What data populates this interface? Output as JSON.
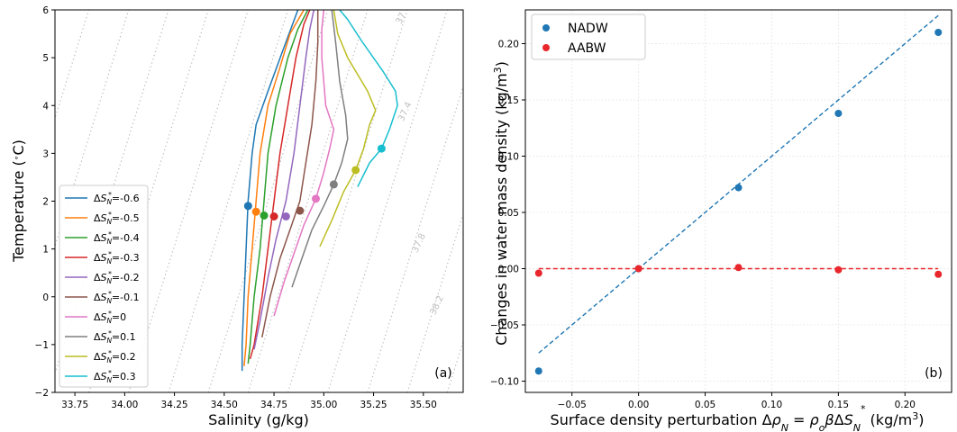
{
  "chart_data": [
    {
      "type": "line",
      "panel_label": "(a)",
      "xlabel": "Salinity (g/kg)",
      "ylabel": "Temperature (°C)",
      "xlim": [
        33.65,
        35.7
      ],
      "ylim": [
        -2,
        6
      ],
      "xticks": [
        {
          "v": 33.75,
          "label": "33.75"
        },
        {
          "v": 34.0,
          "label": "34.00"
        },
        {
          "v": 34.25,
          "label": "34.25"
        },
        {
          "v": 34.5,
          "label": "34.50"
        },
        {
          "v": 34.75,
          "label": "34.75"
        },
        {
          "v": 35.0,
          "label": "35.00"
        },
        {
          "v": 35.25,
          "label": "35.25"
        },
        {
          "v": 35.5,
          "label": "35.50"
        }
      ],
      "yticks": [
        {
          "v": -2,
          "label": "−2"
        },
        {
          "v": -1,
          "label": "−1"
        },
        {
          "v": 0,
          "label": "0"
        },
        {
          "v": 1,
          "label": "1"
        },
        {
          "v": 2,
          "label": "2"
        },
        {
          "v": 3,
          "label": "3"
        },
        {
          "v": 4,
          "label": "4"
        },
        {
          "v": 5,
          "label": "5"
        },
        {
          "v": 6,
          "label": "6"
        }
      ],
      "density_contours": {
        "style": "dotted gray",
        "lines": [
          {
            "S_at_Tmin": 33.22,
            "S_at_Tmax": 33.82
          },
          {
            "S_at_Tmin": 33.42,
            "S_at_Tmax": 34.02
          },
          {
            "S_at_Tmin": 33.62,
            "S_at_Tmax": 34.22
          },
          {
            "S_at_Tmin": 33.82,
            "S_at_Tmax": 34.42
          },
          {
            "S_at_Tmin": 34.02,
            "S_at_Tmax": 34.62
          },
          {
            "S_at_Tmin": 34.22,
            "S_at_Tmax": 34.82
          },
          {
            "S_at_Tmin": 34.42,
            "S_at_Tmax": 35.02
          },
          {
            "S_at_Tmin": 34.62,
            "S_at_Tmax": 35.22
          },
          {
            "S_at_Tmin": 34.82,
            "S_at_Tmax": 35.42
          },
          {
            "S_at_Tmin": 35.02,
            "S_at_Tmax": 35.62
          },
          {
            "S_at_Tmin": 35.22,
            "S_at_Tmax": 35.82
          },
          {
            "S_at_Tmin": 35.42,
            "S_at_Tmax": 36.02
          },
          {
            "S_at_Tmin": 35.62,
            "S_at_Tmax": 36.22
          }
        ],
        "labels": [
          {
            "text": "37",
            "S": 35.4,
            "T": 5.8
          },
          {
            "text": "37.4",
            "S": 35.42,
            "T": 3.85
          },
          {
            "text": "37.8",
            "S": 35.49,
            "T": 1.1
          },
          {
            "text": "38.2",
            "S": 35.58,
            "T": -0.2
          }
        ]
      },
      "legend_position": "lower-left",
      "series": [
        {
          "name": "ΔS*N=-0.6",
          "color": "#1f77b4",
          "points": [
            [
              34.59,
              -1.55
            ],
            [
              34.59,
              -1
            ],
            [
              34.6,
              0
            ],
            [
              34.61,
              1
            ],
            [
              34.62,
              2
            ],
            [
              34.64,
              3
            ],
            [
              34.66,
              3.6
            ],
            [
              34.72,
              4.3
            ],
            [
              34.79,
              5.1
            ],
            [
              34.87,
              6
            ]
          ],
          "marker": [
            34.62,
            1.9
          ]
        },
        {
          "name": "ΔS*N=-0.5",
          "color": "#ff7f0e",
          "points": [
            [
              34.6,
              -1.45
            ],
            [
              34.61,
              -1
            ],
            [
              34.62,
              0
            ],
            [
              34.64,
              1
            ],
            [
              34.66,
              2
            ],
            [
              34.68,
              3
            ],
            [
              34.72,
              4
            ],
            [
              34.78,
              4.8
            ],
            [
              34.83,
              5.5
            ],
            [
              34.9,
              6
            ]
          ],
          "marker": [
            34.66,
            1.78
          ]
        },
        {
          "name": "ΔS*N=-0.4",
          "color": "#2ca02c",
          "points": [
            [
              34.62,
              -1.4
            ],
            [
              34.63,
              -1
            ],
            [
              34.65,
              0
            ],
            [
              34.68,
              1
            ],
            [
              34.7,
              2
            ],
            [
              34.72,
              3
            ],
            [
              34.76,
              4
            ],
            [
              34.82,
              5
            ],
            [
              34.87,
              5.6
            ],
            [
              34.92,
              6
            ]
          ],
          "marker": [
            34.7,
            1.7
          ]
        },
        {
          "name": "ΔS*N=-0.3",
          "color": "#d62728",
          "points": [
            [
              34.63,
              -1.3
            ],
            [
              34.65,
              -1
            ],
            [
              34.69,
              0
            ],
            [
              34.72,
              1
            ],
            [
              34.75,
              2
            ],
            [
              34.78,
              3
            ],
            [
              34.82,
              4
            ],
            [
              34.86,
              5
            ],
            [
              34.9,
              5.7
            ],
            [
              34.93,
              6
            ]
          ],
          "marker": [
            34.75,
            1.68
          ]
        },
        {
          "name": "ΔS*N=-0.2",
          "color": "#9467bd",
          "points": [
            [
              34.65,
              -1.1
            ],
            [
              34.68,
              -0.5
            ],
            [
              34.72,
              0.4
            ],
            [
              34.76,
              1.2
            ],
            [
              34.81,
              2
            ],
            [
              34.85,
              3
            ],
            [
              34.88,
              4
            ],
            [
              34.91,
              5
            ],
            [
              34.93,
              5.6
            ],
            [
              34.95,
              6
            ]
          ],
          "marker": [
            34.81,
            1.68
          ]
        },
        {
          "name": "ΔS*N=-0.1",
          "color": "#8c564b",
          "points": [
            [
              34.69,
              -0.85
            ],
            [
              34.73,
              0
            ],
            [
              34.78,
              0.8
            ],
            [
              34.83,
              1.4
            ],
            [
              34.88,
              2
            ],
            [
              34.91,
              2.8
            ],
            [
              34.94,
              3.6
            ],
            [
              34.96,
              4.5
            ],
            [
              34.97,
              5.3
            ],
            [
              34.97,
              6
            ]
          ],
          "marker": [
            34.88,
            1.8
          ]
        },
        {
          "name": "ΔS*N=0",
          "color": "#e377c2",
          "points": [
            [
              34.75,
              -0.4
            ],
            [
              34.8,
              0.3
            ],
            [
              34.85,
              0.9
            ],
            [
              34.9,
              1.5
            ],
            [
              34.96,
              2.05
            ],
            [
              35.0,
              2.6
            ],
            [
              35.03,
              3.1
            ],
            [
              35.05,
              3.5
            ],
            [
              35.01,
              4
            ],
            [
              34.99,
              5
            ],
            [
              34.99,
              5.6
            ],
            [
              35.0,
              6
            ]
          ],
          "marker": [
            34.96,
            2.05
          ]
        },
        {
          "name": "ΔS*N=0.1",
          "color": "#7f7f7f",
          "points": [
            [
              34.84,
              0.2
            ],
            [
              34.89,
              0.8
            ],
            [
              34.94,
              1.4
            ],
            [
              35.0,
              1.9
            ],
            [
              35.05,
              2.35
            ],
            [
              35.09,
              2.8
            ],
            [
              35.12,
              3.3
            ],
            [
              35.11,
              3.8
            ],
            [
              35.08,
              4.5
            ],
            [
              35.06,
              5.3
            ],
            [
              35.04,
              6
            ]
          ],
          "marker": [
            35.05,
            2.35
          ]
        },
        {
          "name": "ΔS*N=0.2",
          "color": "#bcbd22",
          "points": [
            [
              34.98,
              1.05
            ],
            [
              35.04,
              1.6
            ],
            [
              35.1,
              2.2
            ],
            [
              35.16,
              2.65
            ],
            [
              35.2,
              3.1
            ],
            [
              35.23,
              3.6
            ],
            [
              35.26,
              3.9
            ],
            [
              35.22,
              4.3
            ],
            [
              35.12,
              5.0
            ],
            [
              35.07,
              5.5
            ],
            [
              35.05,
              6
            ]
          ],
          "marker": [
            35.16,
            2.65
          ]
        },
        {
          "name": "ΔS*N=0.3",
          "color": "#17becf",
          "points": [
            [
              35.17,
              2.3
            ],
            [
              35.23,
              2.8
            ],
            [
              35.29,
              3.1
            ],
            [
              35.33,
              3.5
            ],
            [
              35.37,
              4.0
            ],
            [
              35.36,
              4.3
            ],
            [
              35.3,
              4.7
            ],
            [
              35.19,
              5.35
            ],
            [
              35.12,
              5.8
            ],
            [
              35.08,
              6
            ]
          ],
          "marker": [
            35.29,
            3.1
          ]
        }
      ]
    },
    {
      "type": "scatter",
      "panel_label": "(b)",
      "xlabel": "Surface density perturbation Δρ_N = ρ_o β ΔS*_N (kg/m³)",
      "ylabel": "Changes in water mass density (kg/m³)",
      "xlim": [
        -0.085,
        0.235
      ],
      "ylim": [
        -0.11,
        0.23
      ],
      "xticks": [
        {
          "v": -0.05,
          "label": "−0.05"
        },
        {
          "v": 0.0,
          "label": "0.00"
        },
        {
          "v": 0.05,
          "label": "0.05"
        },
        {
          "v": 0.1,
          "label": "0.10"
        },
        {
          "v": 0.15,
          "label": "0.15"
        },
        {
          "v": 0.2,
          "label": "0.20"
        }
      ],
      "yticks": [
        {
          "v": -0.1,
          "label": "−0.10"
        },
        {
          "v": -0.05,
          "label": "−0.05"
        },
        {
          "v": 0.0,
          "label": "0.00"
        },
        {
          "v": 0.05,
          "label": "0.05"
        },
        {
          "v": 0.1,
          "label": "0.10"
        },
        {
          "v": 0.15,
          "label": "0.15"
        },
        {
          "v": 0.2,
          "label": "0.20"
        }
      ],
      "grid": true,
      "legend_position": "top-left",
      "series": [
        {
          "name": "NADW",
          "color": "#1f77b4",
          "x": [
            -0.075,
            0.0,
            0.075,
            0.15,
            0.225
          ],
          "y": [
            -0.091,
            0.0,
            0.072,
            0.138,
            0.21
          ],
          "fit": [
            [
              -0.075,
              -0.075
            ],
            [
              0.225,
              0.225
            ]
          ]
        },
        {
          "name": "AABW",
          "color": "#e8262b",
          "x": [
            -0.075,
            0.0,
            0.075,
            0.15,
            0.225
          ],
          "y": [
            -0.004,
            0.0,
            0.001,
            -0.001,
            -0.005
          ],
          "fit": [
            [
              -0.075,
              0.0
            ],
            [
              0.225,
              0.0
            ]
          ]
        }
      ]
    }
  ]
}
